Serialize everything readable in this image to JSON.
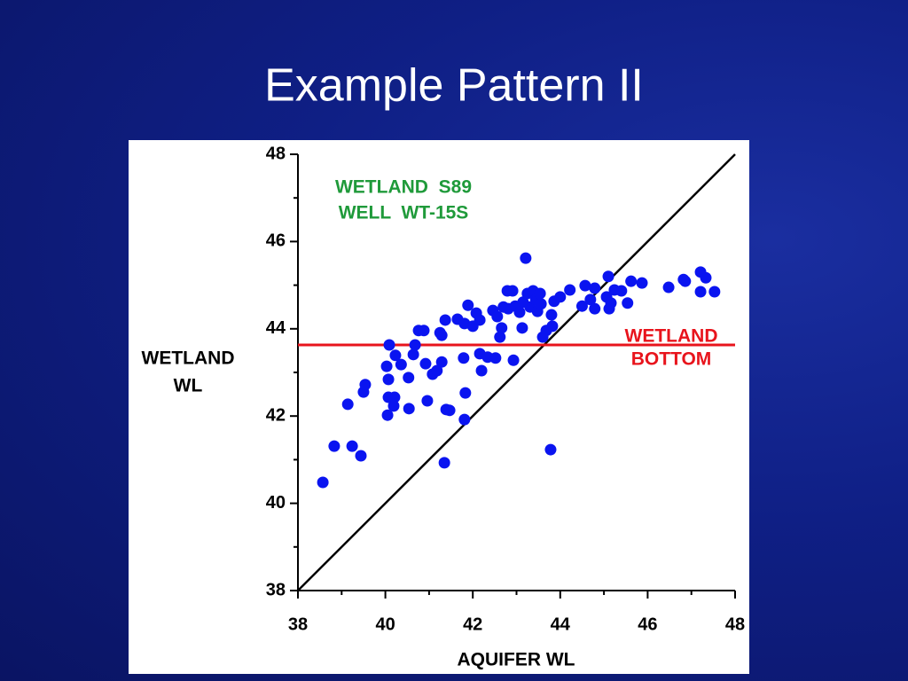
{
  "chart_data": {
    "type": "scatter",
    "title": "Example Pattern II",
    "xlabel": "AQUIFER WL",
    "ylabel": [
      "WETLAND",
      "WL"
    ],
    "xlim": [
      38,
      48
    ],
    "ylim": [
      38,
      48
    ],
    "xticks": [
      38,
      40,
      42,
      44,
      46,
      48
    ],
    "yticks": [
      38,
      40,
      42,
      44,
      46,
      48
    ],
    "minor_xticks": [
      39,
      41,
      43,
      45,
      47
    ],
    "minor_yticks": [
      39,
      41,
      43,
      45,
      47
    ],
    "diagonal": true,
    "hline": {
      "y": 43.63,
      "color": "#e8141c"
    },
    "annotations": [
      {
        "text": "WETLAND  S89",
        "color": "#1f9a3a"
      },
      {
        "text": "WELL  WT-15S",
        "color": "#1f9a3a"
      },
      {
        "text": "WETLAND",
        "color": "#e8141c"
      },
      {
        "text": "BOTTOM",
        "color": "#e8141c"
      }
    ],
    "series": [
      {
        "color": "#0a14f0",
        "x": [
          38.57,
          38.83,
          39.24,
          39.44,
          39.14,
          39.5,
          39.54,
          40.05,
          40.07,
          40.21,
          40.19,
          40.54,
          40.07,
          40.03,
          40.23,
          40.09,
          40.36,
          40.53,
          40.64,
          40.68,
          40.76,
          40.88,
          40.92,
          40.96,
          41.08,
          41.18,
          41.29,
          41.25,
          41.29,
          41.37,
          41.39,
          41.47,
          41.35,
          41.65,
          41.81,
          41.79,
          41.83,
          41.81,
          41.89,
          42.0,
          42.08,
          42.16,
          42.16,
          42.2,
          42.34,
          42.52,
          42.46,
          42.56,
          42.62,
          42.66,
          42.7,
          42.79,
          42.81,
          42.91,
          42.93,
          42.97,
          43.07,
          43.13,
          43.15,
          43.21,
          43.25,
          43.31,
          43.38,
          43.44,
          43.48,
          43.54,
          43.56,
          43.6,
          43.68,
          43.8,
          43.82,
          43.86,
          43.78,
          44.0,
          44.22,
          44.5,
          44.57,
          44.69,
          44.79,
          44.79,
          45.06,
          45.12,
          45.1,
          45.16,
          45.24,
          45.4,
          45.54,
          45.62,
          45.87,
          46.48,
          46.82,
          46.86,
          47.21,
          47.33,
          47.21,
          47.53
        ],
        "values": [
          40.48,
          41.31,
          41.31,
          41.09,
          42.27,
          42.55,
          42.72,
          42.02,
          42.43,
          42.43,
          42.23,
          42.17,
          42.84,
          43.14,
          43.39,
          43.63,
          43.18,
          42.88,
          43.41,
          43.63,
          43.96,
          43.96,
          43.2,
          42.35,
          42.96,
          43.04,
          43.24,
          43.91,
          43.85,
          44.2,
          42.15,
          42.13,
          40.93,
          44.22,
          44.12,
          43.33,
          42.53,
          41.92,
          44.54,
          44.06,
          44.36,
          44.2,
          43.43,
          43.04,
          43.35,
          43.33,
          44.42,
          44.28,
          43.81,
          44.02,
          44.5,
          44.87,
          44.46,
          44.87,
          43.28,
          44.52,
          44.38,
          44.02,
          44.61,
          45.62,
          44.81,
          44.5,
          44.87,
          44.67,
          44.4,
          44.81,
          44.57,
          43.81,
          43.96,
          44.32,
          44.06,
          44.63,
          41.23,
          44.73,
          44.89,
          44.52,
          44.99,
          44.67,
          44.46,
          44.93,
          44.73,
          44.46,
          45.2,
          44.59,
          44.89,
          44.87,
          44.59,
          45.09,
          45.05,
          44.95,
          45.13,
          45.09,
          45.3,
          45.17,
          44.85,
          44.85
        ]
      }
    ]
  }
}
